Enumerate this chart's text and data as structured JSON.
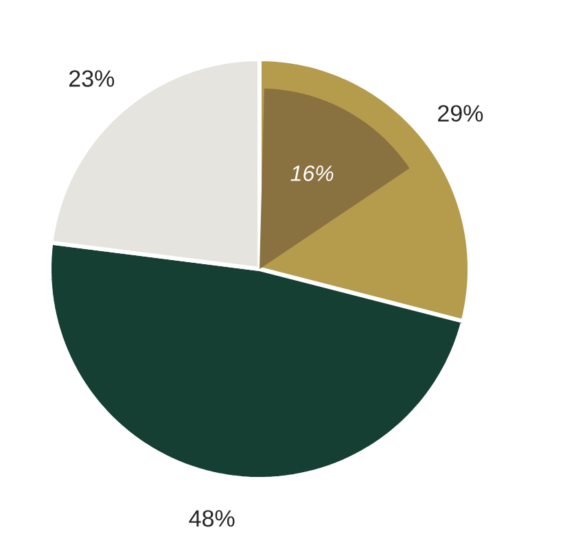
{
  "chart_data": {
    "type": "pie",
    "categories": [
      null,
      null,
      null
    ],
    "series": [
      {
        "values": [
          29,
          48,
          23
        ],
        "colors": [
          "#b59c4c",
          "#163f33",
          "#e6e4df"
        ],
        "value_labels": [
          "29%",
          "48%",
          "23%"
        ]
      },
      {
        "values": [
          16,
          null,
          null
        ],
        "colors": [
          "#8a7140",
          null,
          null
        ],
        "value_labels": [
          "16%",
          null,
          null
        ]
      }
    ]
  }
}
